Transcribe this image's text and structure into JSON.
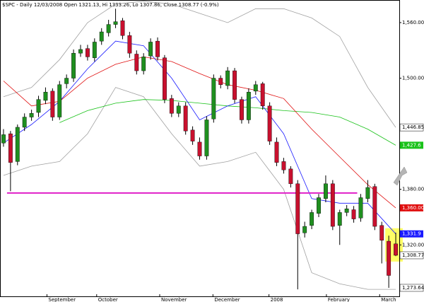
{
  "chart_data": {
    "type": "candlestick",
    "title": "$SPC - Daily 12/03/2008 Open 1321.13, Hi 1333.26, Lo 1307.86, Close 1308.77 (-0.9%)",
    "open": [
      1430,
      1440,
      1410,
      1447,
      1458,
      1463,
      1476,
      1486,
      1458,
      1494,
      1500,
      1527,
      1532,
      1522,
      1540,
      1549,
      1558,
      1562,
      1546,
      1526,
      1508,
      1524,
      1540,
      1522,
      1478,
      1462,
      1470,
      1444,
      1431,
      1416,
      1456,
      1500,
      1492,
      1508,
      1477,
      1455,
      1486,
      1494,
      1470,
      1431,
      1410,
      1402,
      1386,
      1333,
      1341,
      1354,
      1370,
      1386,
      1341,
      1355,
      1358,
      1349,
      1370,
      1383,
      1341,
      1324,
      1321.13
    ],
    "high": [
      1445,
      1443,
      1450,
      1462,
      1466,
      1481,
      1490,
      1489,
      1497,
      1504,
      1531,
      1536,
      1536,
      1543,
      1554,
      1563,
      1575,
      1565,
      1550,
      1530,
      1527,
      1543,
      1544,
      1525,
      1482,
      1474,
      1474,
      1448,
      1436,
      1459,
      1504,
      1503,
      1512,
      1511,
      1480,
      1489,
      1497,
      1496,
      1474,
      1436,
      1414,
      1405,
      1390,
      1345,
      1358,
      1375,
      1395,
      1390,
      1358,
      1363,
      1362,
      1375,
      1390,
      1386,
      1345,
      1330,
      1333.26
    ],
    "low": [
      1426,
      1378,
      1406,
      1443,
      1454,
      1458,
      1472,
      1454,
      1455,
      1489,
      1496,
      1523,
      1519,
      1518,
      1536,
      1545,
      1554,
      1542,
      1522,
      1504,
      1504,
      1520,
      1519,
      1473,
      1458,
      1458,
      1439,
      1428,
      1412,
      1412,
      1452,
      1489,
      1488,
      1473,
      1451,
      1451,
      1482,
      1466,
      1428,
      1405,
      1397,
      1382,
      1272,
      1328,
      1337,
      1350,
      1366,
      1336,
      1320,
      1351,
      1344,
      1345,
      1366,
      1336,
      1300,
      1273.64,
      1307.86
    ],
    "close": [
      1439,
      1409,
      1447,
      1458,
      1462,
      1477,
      1485,
      1458,
      1493,
      1500,
      1527,
      1531,
      1523,
      1539,
      1550,
      1558,
      1561,
      1546,
      1527,
      1508,
      1523,
      1539,
      1523,
      1477,
      1462,
      1470,
      1443,
      1432,
      1416,
      1455,
      1500,
      1493,
      1508,
      1477,
      1455,
      1485,
      1493,
      1470,
      1432,
      1409,
      1401,
      1386,
      1332,
      1340,
      1355,
      1371,
      1386,
      1340,
      1355,
      1359,
      1348,
      1371,
      1382,
      1340,
      1325,
      1287,
      1308.77
    ],
    "up_color": "#1f8f1f",
    "down_color": "#c8102e",
    "overlays": [
      {
        "color": "#a0a0a0",
        "x": [
          0,
          4,
          8,
          12,
          16,
          20,
          24,
          28,
          32,
          36,
          40,
          44,
          48,
          52,
          56
        ],
        "values": [
          1480,
          1490,
          1520,
          1560,
          1580,
          1583,
          1580,
          1570,
          1560,
          1575,
          1575,
          1565,
          1545,
          1490,
          1446.85
        ]
      },
      {
        "color": "#a0a0a0",
        "x": [
          0,
          4,
          8,
          12,
          16,
          20,
          24,
          28,
          32,
          36,
          40,
          44,
          48,
          52,
          56
        ],
        "values": [
          1395,
          1405,
          1410,
          1440,
          1490,
          1480,
          1440,
          1405,
          1410,
          1420,
          1380,
          1290,
          1278,
          1272,
          1272
        ]
      },
      {
        "color": "#19c219",
        "x": [
          8,
          12,
          16,
          20,
          24,
          28,
          32,
          36,
          40,
          44,
          48,
          52,
          56
        ],
        "values": [
          1452,
          1465,
          1473,
          1477,
          1476,
          1473,
          1470,
          1468,
          1465,
          1463,
          1458,
          1445,
          1427.6
        ]
      },
      {
        "color": "#e01010",
        "x": [
          0,
          4,
          8,
          12,
          16,
          20,
          24,
          28,
          32,
          36,
          40,
          44,
          48,
          52,
          56
        ],
        "values": [
          1497,
          1470,
          1475,
          1500,
          1515,
          1523,
          1518,
          1505,
          1493,
          1487,
          1478,
          1445,
          1415,
          1385,
          1360
        ]
      },
      {
        "color": "#1a1aff",
        "x": [
          0,
          4,
          8,
          12,
          16,
          20,
          24,
          28,
          32,
          36,
          40,
          44,
          48,
          52,
          56
        ],
        "values": [
          1430,
          1450,
          1475,
          1510,
          1540,
          1535,
          1500,
          1455,
          1470,
          1480,
          1440,
          1370,
          1365,
          1365,
          1331.9
        ]
      }
    ],
    "hline": {
      "value": 1376,
      "x": [
        0.5,
        50.5
      ],
      "color": "#e020c8"
    },
    "highlight": {
      "x": [
        54.5,
        57
      ],
      "y": [
        1302,
        1338
      ],
      "color": "#ffff66"
    },
    "value_tags": [
      {
        "value": 1446.85,
        "label": "1,446.85",
        "color": "#ffffff"
      },
      {
        "value": 1427.6,
        "label": "1,427.6",
        "color": "#19c219"
      },
      {
        "value": 1360,
        "label": "1,360.00",
        "color": "#e01010"
      },
      {
        "value": 1331.9,
        "label": "1,331.9",
        "color": "#1a1aff"
      },
      {
        "value": 1308.77,
        "label": "1,308.77",
        "color": "#ffffff"
      },
      {
        "value": 1273.64,
        "label": "1,273.64",
        "color": "#ffffff"
      }
    ],
    "xlim": [
      -0.5,
      56.5
    ],
    "xticks": [
      {
        "value": 6.2,
        "label": "September"
      },
      {
        "value": 13.3,
        "label": "October"
      },
      {
        "value": 22.3,
        "label": "November"
      },
      {
        "value": 29.9,
        "label": "December"
      },
      {
        "value": 37.9,
        "label": "2008"
      },
      {
        "value": 46.1,
        "label": "February"
      },
      {
        "value": 53.7,
        "label": "March"
      }
    ],
    "ylim": [
      1263.7,
      1584.4
    ],
    "yticks": [
      {
        "value": 1560,
        "label": "1,560.00"
      },
      {
        "value": 1500,
        "label": "1,500.00"
      },
      {
        "value": 1380,
        "label": "1,380.00"
      },
      {
        "value": 1320,
        "label": "1,320.00"
      }
    ]
  }
}
